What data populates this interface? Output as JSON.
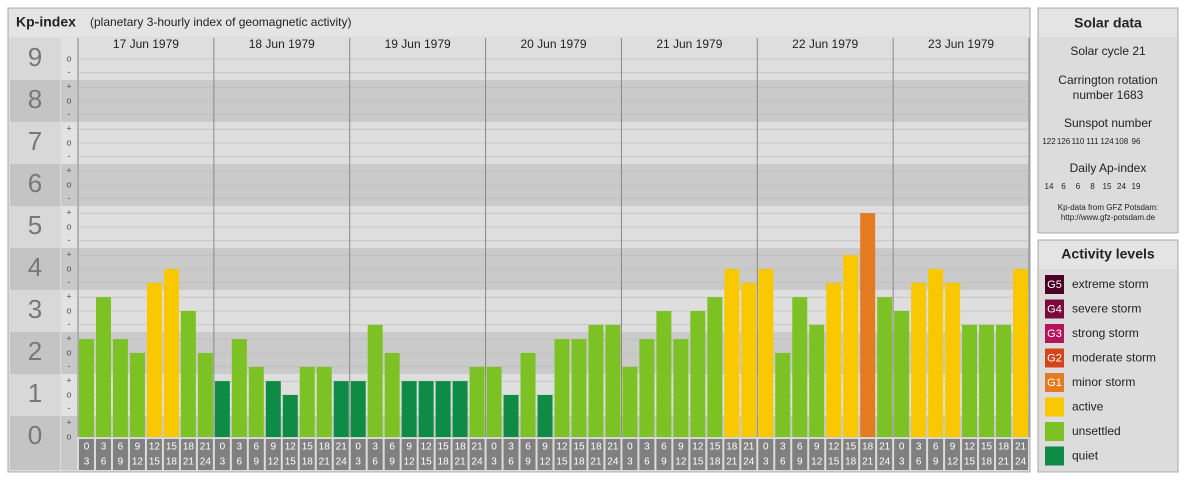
{
  "chart_data": {
    "type": "bar",
    "title": "Kp-index",
    "subtitle": "(planetary 3-hourly index of geomagnetic activity)",
    "days": [
      "17 Jun 1979",
      "18 Jun 1979",
      "19 Jun 1979",
      "20 Jun 1979",
      "21 Jun 1979",
      "22 Jun 1979",
      "23 Jun 1979"
    ],
    "hours": [
      [
        "0",
        "3"
      ],
      [
        "3",
        "6"
      ],
      [
        "6",
        "9"
      ],
      [
        "9",
        "12"
      ],
      [
        "12",
        "15"
      ],
      [
        "15",
        "18"
      ],
      [
        "18",
        "21"
      ],
      [
        "21",
        "24"
      ]
    ],
    "values": [
      2.33,
      3.33,
      2.33,
      2,
      3.67,
      4,
      3,
      2,
      1.33,
      2.33,
      1.67,
      1.33,
      1,
      1.67,
      1.67,
      1.33,
      1.33,
      2.67,
      2,
      1.33,
      1.33,
      1.33,
      1.33,
      1.67,
      1.67,
      1,
      2,
      1,
      2.33,
      2.33,
      2.67,
      2.67,
      1.67,
      2.33,
      3,
      2.33,
      3,
      3.33,
      4,
      3.67,
      4,
      2,
      3.33,
      2.67,
      3.67,
      4.33,
      5.33,
      3.33,
      3,
      3.67,
      4,
      3.67,
      2.67,
      2.67,
      2.67,
      4
    ],
    "colors": [
      "#7cc224",
      "#7cc224",
      "#7cc224",
      "#7cc224",
      "#fac800",
      "#fac800",
      "#7cc224",
      "#7cc224",
      "#0e8c45",
      "#7cc224",
      "#7cc224",
      "#0e8c45",
      "#0e8c45",
      "#7cc224",
      "#7cc224",
      "#0e8c45",
      "#0e8c45",
      "#7cc224",
      "#7cc224",
      "#0e8c45",
      "#0e8c45",
      "#0e8c45",
      "#0e8c45",
      "#7cc224",
      "#7cc224",
      "#0e8c45",
      "#7cc224",
      "#0e8c45",
      "#7cc224",
      "#7cc224",
      "#7cc224",
      "#7cc224",
      "#7cc224",
      "#7cc224",
      "#7cc224",
      "#7cc224",
      "#7cc224",
      "#7cc224",
      "#fac800",
      "#fac800",
      "#fac800",
      "#7cc224",
      "#7cc224",
      "#7cc224",
      "#fac800",
      "#fac800",
      "#e57b1f",
      "#7cc224",
      "#7cc224",
      "#fac800",
      "#fac800",
      "#fac800",
      "#7cc224",
      "#7cc224",
      "#7cc224",
      "#fac800"
    ],
    "ylim": [
      0,
      9.5
    ],
    "yticks": [
      0,
      1,
      2,
      3,
      4,
      5,
      6,
      7,
      8,
      9
    ],
    "yticks_minor": [
      {
        "value": 0,
        "label": "o"
      },
      {
        "value": 0.33,
        "label": "+"
      },
      {
        "value": 0.67,
        "label": "-"
      },
      {
        "value": 1,
        "label": "o"
      },
      {
        "value": 1.33,
        "label": "+"
      },
      {
        "value": 1.67,
        "label": "-"
      },
      {
        "value": 2,
        "label": "o"
      },
      {
        "value": 2.33,
        "label": "+"
      },
      {
        "value": 2.67,
        "label": "-"
      },
      {
        "value": 3,
        "label": "o"
      },
      {
        "value": 3.33,
        "label": "+"
      },
      {
        "value": 3.67,
        "label": "-"
      },
      {
        "value": 4,
        "label": "o"
      },
      {
        "value": 4.33,
        "label": "+"
      },
      {
        "value": 4.67,
        "label": "-"
      },
      {
        "value": 5,
        "label": "o"
      },
      {
        "value": 5.33,
        "label": "+"
      },
      {
        "value": 5.67,
        "label": "-"
      },
      {
        "value": 6,
        "label": "o"
      },
      {
        "value": 6.33,
        "label": "+"
      },
      {
        "value": 6.67,
        "label": "-"
      },
      {
        "value": 7,
        "label": "o"
      },
      {
        "value": 7.33,
        "label": "+"
      },
      {
        "value": 7.67,
        "label": "-"
      },
      {
        "value": 8,
        "label": "o"
      },
      {
        "value": 8.33,
        "label": "+"
      },
      {
        "value": 8.67,
        "label": "-"
      },
      {
        "value": 9,
        "label": "o"
      }
    ]
  },
  "solar": {
    "title": "Solar data",
    "cycle": "Solar cycle 21",
    "carrington": [
      "Carrington rotation",
      "number 1683"
    ],
    "sunspot_label": "Sunspot number",
    "sunspots": [
      122,
      126,
      110,
      111,
      124,
      108,
      96
    ],
    "ap_label": "Daily Ap-index",
    "ap": [
      14,
      6,
      6,
      8,
      15,
      24,
      19
    ],
    "source": [
      "Kp-data from GFZ Potsdam:",
      "http://www.gfz-potsdam.de"
    ]
  },
  "levels": {
    "title": "Activity levels",
    "items": [
      {
        "badge": "G5",
        "label": "extreme storm",
        "color": "#4a0022"
      },
      {
        "badge": "G4",
        "label": "severe storm",
        "color": "#7a0a3c"
      },
      {
        "badge": "G3",
        "label": "strong storm",
        "color": "#b4145a"
      },
      {
        "badge": "G2",
        "label": "moderate storm",
        "color": "#d2461a"
      },
      {
        "badge": "G1",
        "label": "minor storm",
        "color": "#e57b1f"
      },
      {
        "label": "active",
        "color": "#fac800"
      },
      {
        "label": "unsettled",
        "color": "#7cc224"
      },
      {
        "label": "quiet",
        "color": "#0e8c45"
      }
    ]
  }
}
